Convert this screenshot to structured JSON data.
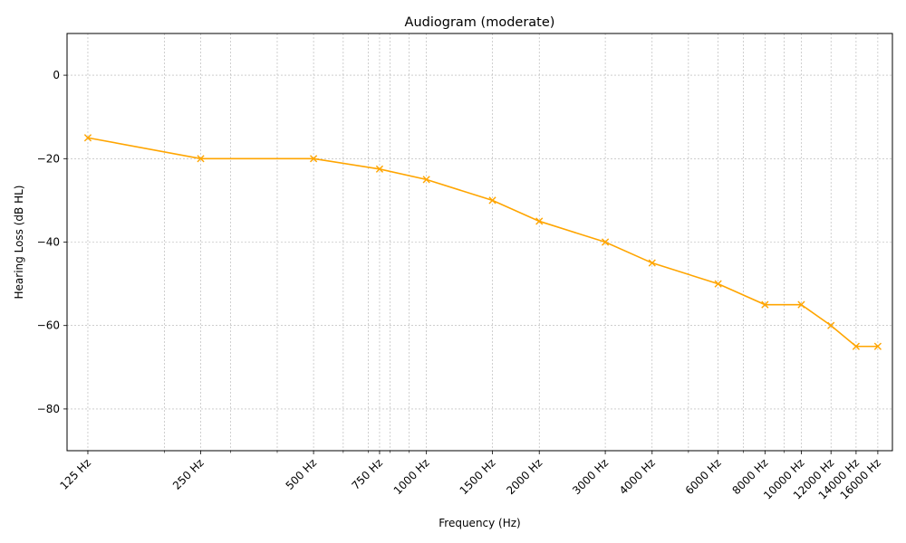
{
  "chart_data": {
    "type": "line",
    "title": "Audiogram (moderate)",
    "xlabel": "Frequency (Hz)",
    "ylabel": "Hearing Loss (dB HL)",
    "x_scale": "log",
    "xlim": [
      110,
      17500
    ],
    "ylim": [
      -90,
      10
    ],
    "grid": true,
    "line_color": "#FFA500",
    "marker": "x",
    "x_ticks": [
      125,
      250,
      500,
      750,
      1000,
      1500,
      2000,
      3000,
      4000,
      6000,
      8000,
      10000,
      12000,
      14000,
      16000
    ],
    "x_tick_labels": [
      "125 Hz",
      "250 Hz",
      "500 Hz",
      "750 Hz",
      "1000 Hz",
      "1500 Hz",
      "2000 Hz",
      "3000 Hz",
      "4000 Hz",
      "6000 Hz",
      "8000 Hz",
      "10000 Hz",
      "12000 Hz",
      "14000 Hz",
      "16000 Hz"
    ],
    "x_minor_ticks": [
      200,
      300,
      400,
      600,
      700,
      800,
      900,
      5000,
      7000,
      9000
    ],
    "y_ticks": [
      0,
      -20,
      -40,
      -60,
      -80
    ],
    "y_tick_labels": [
      "0",
      "−20",
      "−40",
      "−60",
      "−80"
    ],
    "series": [
      {
        "x": [
          125,
          250,
          500,
          750,
          1000,
          1500,
          2000,
          3000,
          4000,
          6000,
          8000,
          10000,
          12000,
          14000,
          16000
        ],
        "y": [
          -15,
          -20,
          -20,
          -22.5,
          -25,
          -30,
          -35,
          -40,
          -45,
          -50,
          -55,
          -55,
          -60,
          -65,
          -65
        ]
      }
    ]
  }
}
